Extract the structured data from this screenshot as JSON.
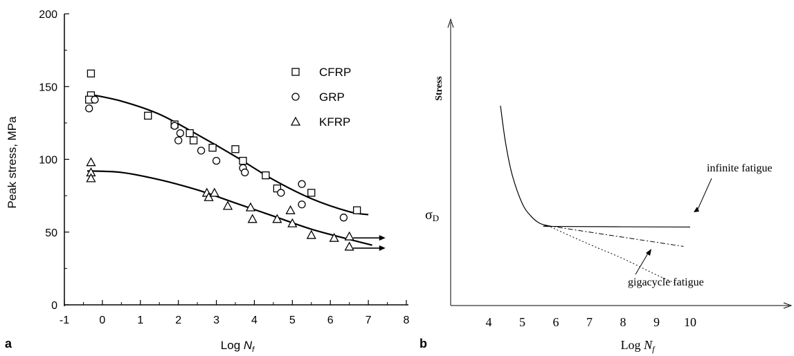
{
  "chart_data": [
    {
      "panel_label": "a",
      "type": "scatter",
      "ylabel": "Peak stress, MPa",
      "xlabel_main": "Log ",
      "xlabel_var": "N",
      "xlabel_sub": "f",
      "xlim": [
        -1,
        8
      ],
      "ylim": [
        0,
        200
      ],
      "xticks": [
        "-1",
        "0",
        "1",
        "2",
        "3",
        "4",
        "5",
        "6",
        "7",
        "8"
      ],
      "yticks": [
        "0",
        "50",
        "100",
        "150",
        "200"
      ],
      "legend_position": "top-right",
      "series": [
        {
          "name": "CFRP",
          "marker": "square",
          "points": [
            [
              -0.3,
              159
            ],
            [
              -0.3,
              144
            ],
            [
              -0.35,
              141
            ],
            [
              1.2,
              130
            ],
            [
              1.9,
              124
            ],
            [
              2.3,
              118
            ],
            [
              2.4,
              113
            ],
            [
              2.9,
              108
            ],
            [
              3.5,
              107
            ],
            [
              3.7,
              99
            ],
            [
              4.3,
              89
            ],
            [
              4.6,
              80
            ],
            [
              5.5,
              77
            ],
            [
              6.7,
              65
            ]
          ]
        },
        {
          "name": "GRP",
          "marker": "circle",
          "points": [
            [
              -0.35,
              135
            ],
            [
              -0.2,
              141
            ],
            [
              1.9,
              123
            ],
            [
              2.0,
              113
            ],
            [
              2.05,
              118
            ],
            [
              2.6,
              106
            ],
            [
              3.0,
              99
            ],
            [
              3.7,
              94
            ],
            [
              3.75,
              91
            ],
            [
              4.7,
              77
            ],
            [
              5.25,
              83
            ],
            [
              5.25,
              69
            ],
            [
              6.35,
              60
            ]
          ]
        },
        {
          "name": "KFRP",
          "marker": "triangle",
          "points": [
            [
              -0.3,
              98
            ],
            [
              -0.3,
              91
            ],
            [
              -0.3,
              87
            ],
            [
              2.75,
              77
            ],
            [
              2.8,
              74
            ],
            [
              2.95,
              77
            ],
            [
              3.3,
              68
            ],
            [
              3.9,
              67
            ],
            [
              3.95,
              59
            ],
            [
              4.6,
              59
            ],
            [
              4.95,
              65
            ],
            [
              5.0,
              56
            ],
            [
              5.5,
              48
            ],
            [
              6.1,
              46
            ],
            [
              6.5,
              47
            ],
            [
              6.5,
              40
            ]
          ]
        }
      ],
      "fit_curves": [
        {
          "series": "CFRP",
          "points": [
            [
              -0.4,
              145
            ],
            [
              0.5,
              140
            ],
            [
              1.5,
              131
            ],
            [
              2.5,
              117
            ],
            [
              3.5,
              102
            ],
            [
              4.5,
              86
            ],
            [
              5.5,
              73
            ],
            [
              6.5,
              64
            ],
            [
              7.0,
              62
            ]
          ]
        },
        {
          "series": "KFRP",
          "points": [
            [
              -0.4,
              92
            ],
            [
              0.5,
              91
            ],
            [
              1.5,
              86
            ],
            [
              2.5,
              79
            ],
            [
              3.5,
              70
            ],
            [
              4.5,
              61
            ],
            [
              5.5,
              52
            ],
            [
              6.5,
              45
            ],
            [
              7.1,
              41
            ]
          ]
        }
      ],
      "runout_arrows": [
        {
          "x_from": 6.6,
          "x_to": 7.45,
          "y": 46
        },
        {
          "x_from": 6.6,
          "x_to": 7.45,
          "y": 39
        }
      ]
    },
    {
      "panel_label": "b",
      "type": "line",
      "ylabel": "Stress",
      "xlabel_main": "Log ",
      "xlabel_var": "N",
      "xlabel_sub": "f",
      "xticks": [
        "4",
        "5",
        "6",
        "7",
        "8",
        "9",
        "10"
      ],
      "sigma_label_main": "σ",
      "sigma_label_sub": "D",
      "annotations": [
        "infinite fatigue",
        "gigacycle fatigue"
      ],
      "series": [
        {
          "name": "",
          "style": "solid",
          "points": [
            [
              4.35,
              0.98
            ],
            [
              4.5,
              0.8
            ],
            [
              4.7,
              0.64
            ],
            [
              5.0,
              0.5
            ],
            [
              5.25,
              0.44
            ],
            [
              5.5,
              0.405
            ],
            [
              5.75,
              0.392
            ],
            [
              6.0,
              0.388
            ],
            [
              10.0,
              0.385
            ]
          ]
        },
        {
          "name": "",
          "style": "dash-dot",
          "points": [
            [
              5.75,
              0.392
            ],
            [
              7.0,
              0.36
            ],
            [
              8.0,
              0.335
            ],
            [
              9.0,
              0.31
            ],
            [
              9.8,
              0.29
            ]
          ]
        },
        {
          "name": "",
          "style": "dotted",
          "points": [
            [
              5.75,
              0.392
            ],
            [
              7.0,
              0.3
            ],
            [
              8.0,
              0.23
            ],
            [
              9.0,
              0.15
            ],
            [
              9.7,
              0.1
            ]
          ]
        }
      ]
    }
  ]
}
